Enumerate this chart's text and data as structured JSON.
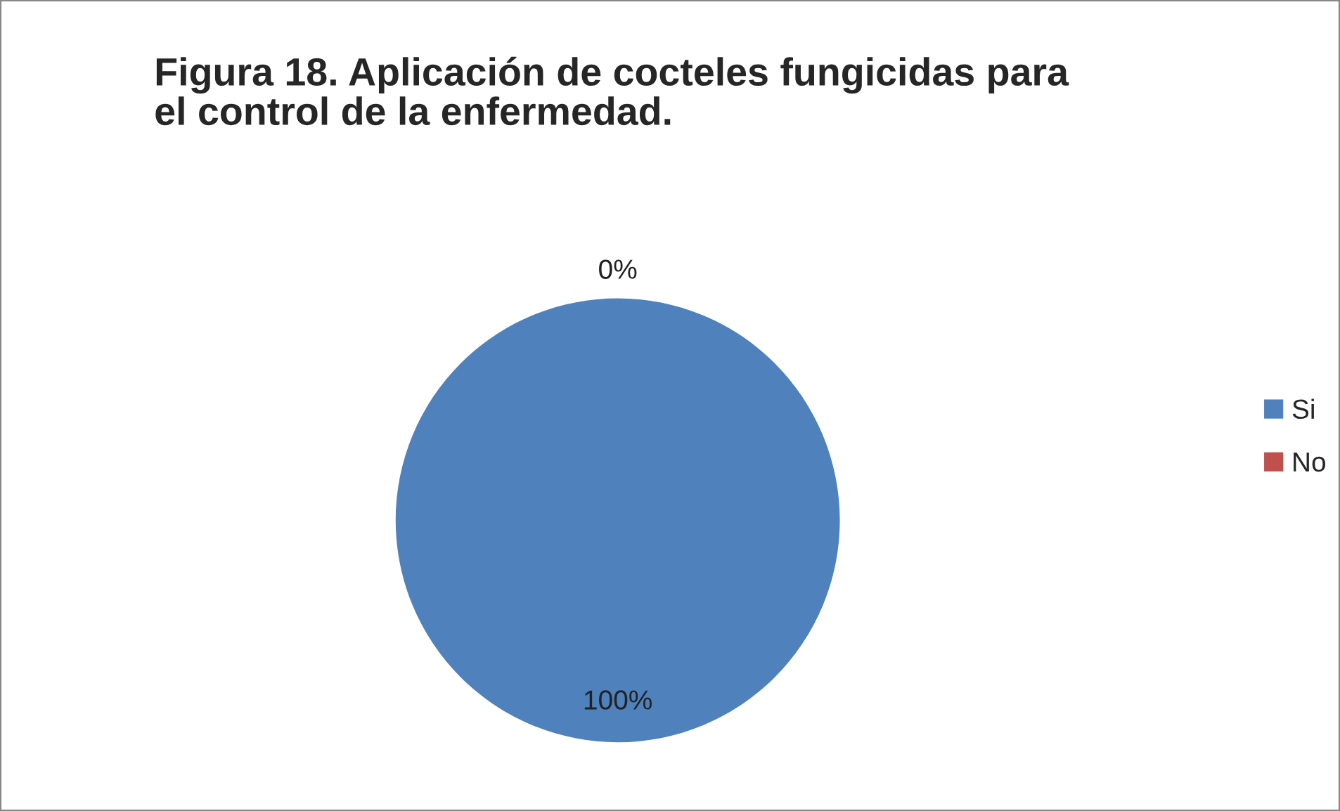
{
  "chart_data": {
    "type": "pie",
    "title": "Figura 18. Aplicación de cocteles fungicidas para\nel control de la enfermedad.",
    "categories": [
      "Si",
      "No"
    ],
    "values": [
      100,
      0
    ],
    "colors": [
      "#4f81bd",
      "#c0504d"
    ],
    "value_labels": [
      "100%",
      "0%"
    ],
    "legend": "right"
  }
}
